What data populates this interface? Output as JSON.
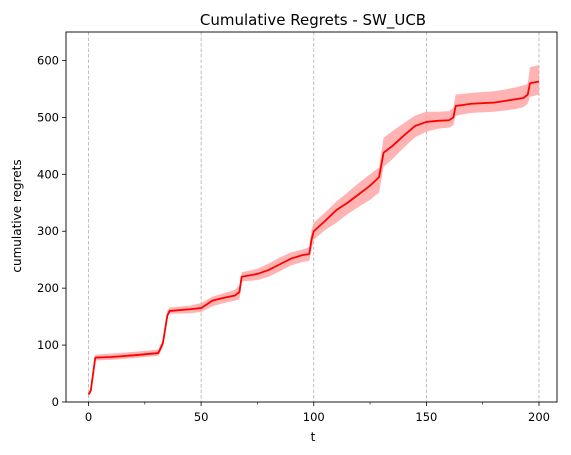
{
  "chart_data": {
    "type": "line",
    "title": "Cumulative Regrets - SW_UCB",
    "xlabel": "t",
    "ylabel": "cumulative regrets",
    "xlim": [
      -10,
      208
    ],
    "ylim": [
      0,
      650
    ],
    "xticks": [
      0,
      50,
      100,
      150,
      200
    ],
    "yticks": [
      0,
      100,
      200,
      300,
      400,
      500,
      600
    ],
    "xtick_labels": [
      "0",
      "50",
      "100",
      "150",
      "200"
    ],
    "ytick_labels": [
      "0",
      "100",
      "200",
      "300",
      "400",
      "500",
      "600"
    ],
    "grid": "vertical dashed lines at major x ticks",
    "line_color": "#ff0000",
    "band_color": "#ff9999",
    "series": [
      {
        "style": "mean line with shaded band",
        "x": [
          0,
          1,
          3,
          10,
          20,
          31,
          33,
          35,
          36,
          45,
          50,
          55,
          60,
          65,
          67,
          68,
          75,
          80,
          85,
          90,
          95,
          98,
          99,
          100,
          105,
          110,
          115,
          120,
          125,
          129,
          131,
          135,
          140,
          145,
          150,
          155,
          160,
          162,
          163,
          170,
          180,
          185,
          190,
          193,
          195,
          196,
          200
        ],
        "y": [
          13,
          20,
          78,
          79,
          82,
          86,
          103,
          152,
          160,
          163,
          165,
          178,
          183,
          187,
          193,
          220,
          225,
          232,
          242,
          252,
          258,
          260,
          285,
          300,
          318,
          337,
          350,
          365,
          380,
          395,
          438,
          450,
          468,
          485,
          492,
          494,
          495,
          500,
          520,
          524,
          526,
          529,
          532,
          534,
          540,
          560,
          563
        ],
        "lower": [
          11,
          15,
          73,
          74,
          77,
          81,
          96,
          148,
          155,
          156,
          158,
          168,
          174,
          178,
          180,
          212,
          214,
          220,
          230,
          240,
          246,
          248,
          268,
          285,
          302,
          315,
          330,
          343,
          355,
          368,
          413,
          427,
          447,
          465,
          475,
          480,
          482,
          486,
          503,
          508,
          510,
          512,
          515,
          518,
          524,
          536,
          540
        ],
        "upper": [
          15,
          25,
          83,
          85,
          88,
          92,
          110,
          160,
          166,
          169,
          174,
          185,
          191,
          197,
          205,
          228,
          234,
          243,
          254,
          263,
          268,
          272,
          302,
          315,
          333,
          352,
          368,
          385,
          400,
          412,
          464,
          476,
          490,
          503,
          510,
          510,
          511,
          517,
          540,
          543,
          546,
          549,
          553,
          556,
          559,
          588,
          592
        ]
      }
    ]
  }
}
